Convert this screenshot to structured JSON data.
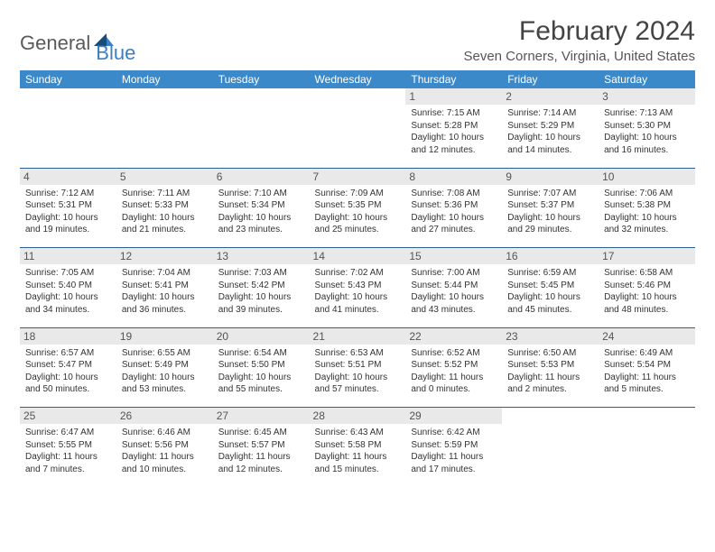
{
  "logo": {
    "main": "General",
    "sub": "Blue"
  },
  "title": "February 2024",
  "location": "Seven Corners, Virginia, United States",
  "colors": {
    "header_bg": "#3b89c9",
    "header_text": "#ffffff",
    "border": "#2f5f8f",
    "daynum_bg": "#e9e9e9",
    "logo_blue": "#3b7fc4",
    "logo_dark": "#184a7a"
  },
  "day_headers": [
    "Sunday",
    "Monday",
    "Tuesday",
    "Wednesday",
    "Thursday",
    "Friday",
    "Saturday"
  ],
  "weeks": [
    [
      null,
      null,
      null,
      null,
      {
        "n": "1",
        "sr": "7:15 AM",
        "ss": "5:28 PM",
        "dl": "10 hours and 12 minutes."
      },
      {
        "n": "2",
        "sr": "7:14 AM",
        "ss": "5:29 PM",
        "dl": "10 hours and 14 minutes."
      },
      {
        "n": "3",
        "sr": "7:13 AM",
        "ss": "5:30 PM",
        "dl": "10 hours and 16 minutes."
      }
    ],
    [
      {
        "n": "4",
        "sr": "7:12 AM",
        "ss": "5:31 PM",
        "dl": "10 hours and 19 minutes."
      },
      {
        "n": "5",
        "sr": "7:11 AM",
        "ss": "5:33 PM",
        "dl": "10 hours and 21 minutes."
      },
      {
        "n": "6",
        "sr": "7:10 AM",
        "ss": "5:34 PM",
        "dl": "10 hours and 23 minutes."
      },
      {
        "n": "7",
        "sr": "7:09 AM",
        "ss": "5:35 PM",
        "dl": "10 hours and 25 minutes."
      },
      {
        "n": "8",
        "sr": "7:08 AM",
        "ss": "5:36 PM",
        "dl": "10 hours and 27 minutes."
      },
      {
        "n": "9",
        "sr": "7:07 AM",
        "ss": "5:37 PM",
        "dl": "10 hours and 29 minutes."
      },
      {
        "n": "10",
        "sr": "7:06 AM",
        "ss": "5:38 PM",
        "dl": "10 hours and 32 minutes."
      }
    ],
    [
      {
        "n": "11",
        "sr": "7:05 AM",
        "ss": "5:40 PM",
        "dl": "10 hours and 34 minutes."
      },
      {
        "n": "12",
        "sr": "7:04 AM",
        "ss": "5:41 PM",
        "dl": "10 hours and 36 minutes."
      },
      {
        "n": "13",
        "sr": "7:03 AM",
        "ss": "5:42 PM",
        "dl": "10 hours and 39 minutes."
      },
      {
        "n": "14",
        "sr": "7:02 AM",
        "ss": "5:43 PM",
        "dl": "10 hours and 41 minutes."
      },
      {
        "n": "15",
        "sr": "7:00 AM",
        "ss": "5:44 PM",
        "dl": "10 hours and 43 minutes."
      },
      {
        "n": "16",
        "sr": "6:59 AM",
        "ss": "5:45 PM",
        "dl": "10 hours and 45 minutes."
      },
      {
        "n": "17",
        "sr": "6:58 AM",
        "ss": "5:46 PM",
        "dl": "10 hours and 48 minutes."
      }
    ],
    [
      {
        "n": "18",
        "sr": "6:57 AM",
        "ss": "5:47 PM",
        "dl": "10 hours and 50 minutes."
      },
      {
        "n": "19",
        "sr": "6:55 AM",
        "ss": "5:49 PM",
        "dl": "10 hours and 53 minutes."
      },
      {
        "n": "20",
        "sr": "6:54 AM",
        "ss": "5:50 PM",
        "dl": "10 hours and 55 minutes."
      },
      {
        "n": "21",
        "sr": "6:53 AM",
        "ss": "5:51 PM",
        "dl": "10 hours and 57 minutes."
      },
      {
        "n": "22",
        "sr": "6:52 AM",
        "ss": "5:52 PM",
        "dl": "11 hours and 0 minutes."
      },
      {
        "n": "23",
        "sr": "6:50 AM",
        "ss": "5:53 PM",
        "dl": "11 hours and 2 minutes."
      },
      {
        "n": "24",
        "sr": "6:49 AM",
        "ss": "5:54 PM",
        "dl": "11 hours and 5 minutes."
      }
    ],
    [
      {
        "n": "25",
        "sr": "6:47 AM",
        "ss": "5:55 PM",
        "dl": "11 hours and 7 minutes."
      },
      {
        "n": "26",
        "sr": "6:46 AM",
        "ss": "5:56 PM",
        "dl": "11 hours and 10 minutes."
      },
      {
        "n": "27",
        "sr": "6:45 AM",
        "ss": "5:57 PM",
        "dl": "11 hours and 12 minutes."
      },
      {
        "n": "28",
        "sr": "6:43 AM",
        "ss": "5:58 PM",
        "dl": "11 hours and 15 minutes."
      },
      {
        "n": "29",
        "sr": "6:42 AM",
        "ss": "5:59 PM",
        "dl": "11 hours and 17 minutes."
      },
      null,
      null
    ]
  ],
  "labels": {
    "sunrise": "Sunrise: ",
    "sunset": "Sunset: ",
    "daylight": "Daylight: "
  }
}
